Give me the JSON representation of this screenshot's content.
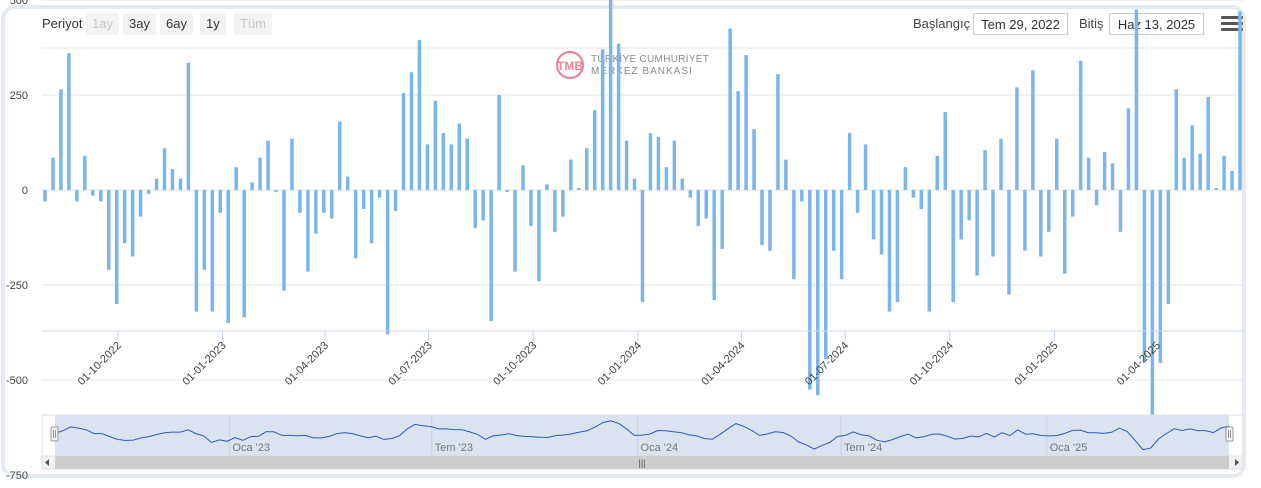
{
  "toolbar": {
    "period_label": "Periyot",
    "range_buttons": [
      {
        "label": "1ay",
        "enabled": false
      },
      {
        "label": "3ay",
        "enabled": true
      },
      {
        "label": "6ay",
        "enabled": true
      },
      {
        "label": "1y",
        "enabled": true
      },
      {
        "label": "Tüm",
        "enabled": false
      }
    ],
    "start_label": "Başlangıç",
    "start_value": "Tem 29, 2022",
    "end_label": "Bitiş",
    "end_value": "Haz 13, 2025"
  },
  "watermark": {
    "line1": "TÜRKİYE CUMHURİYET",
    "line2": "MERKEZ BANKASI"
  },
  "colors": {
    "bar": "#7cb5ec",
    "navigator_fill": "#dbe3f1",
    "navigator_line": "#2f5bb7",
    "frame": "#e4ebf5"
  },
  "navigator": {
    "labels": [
      "Oca '23",
      "Tem '23",
      "Oca '24",
      "Tem '24",
      "Oca '25"
    ]
  },
  "chart_data": {
    "type": "bar",
    "title": "",
    "xlabel": "",
    "ylabel": "",
    "ylim": [
      -750,
      500
    ],
    "yticks": [
      500,
      250,
      0,
      -250,
      -500,
      -750
    ],
    "x_date_range": [
      "2022-07-29",
      "2025-06-13"
    ],
    "x_tick_labels": [
      "01-10-2022",
      "01-01-2023",
      "01-04-2023",
      "01-07-2023",
      "01-10-2023",
      "01-01-2024",
      "01-04-2024",
      "01-07-2024",
      "01-10-2024",
      "01-01-2025",
      "01-04-2025"
    ],
    "values": [
      -30,
      85,
      265,
      360,
      -30,
      90,
      -15,
      -30,
      -210,
      -300,
      -140,
      -175,
      -70,
      -10,
      30,
      110,
      55,
      30,
      335,
      -320,
      -210,
      -320,
      -60,
      -350,
      60,
      -335,
      20,
      85,
      130,
      -5,
      -265,
      135,
      -60,
      -215,
      -115,
      -60,
      -75,
      180,
      35,
      -180,
      -50,
      -140,
      -20,
      -380,
      -55,
      255,
      310,
      395,
      120,
      235,
      150,
      120,
      175,
      135,
      -100,
      -80,
      -345,
      250,
      -5,
      -215,
      65,
      -95,
      -240,
      15,
      -110,
      -70,
      80,
      5,
      110,
      210,
      370,
      560,
      385,
      130,
      30,
      -295,
      150,
      140,
      60,
      130,
      30,
      -20,
      -95,
      -75,
      -290,
      -155,
      425,
      260,
      355,
      160,
      -145,
      -160,
      305,
      80,
      -235,
      -30,
      -525,
      -540,
      -445,
      -160,
      -235,
      150,
      -60,
      120,
      -130,
      -170,
      -320,
      -295,
      60,
      -20,
      -50,
      -320,
      90,
      205,
      -295,
      -130,
      -80,
      -225,
      105,
      -175,
      135,
      -275,
      270,
      -160,
      315,
      -175,
      -110,
      135,
      -220,
      -70,
      340,
      85,
      -40,
      100,
      70,
      -110,
      215,
      475,
      -450,
      -660,
      -455,
      -300,
      265,
      85,
      170,
      95,
      245,
      5,
      90,
      50,
      470
    ]
  }
}
